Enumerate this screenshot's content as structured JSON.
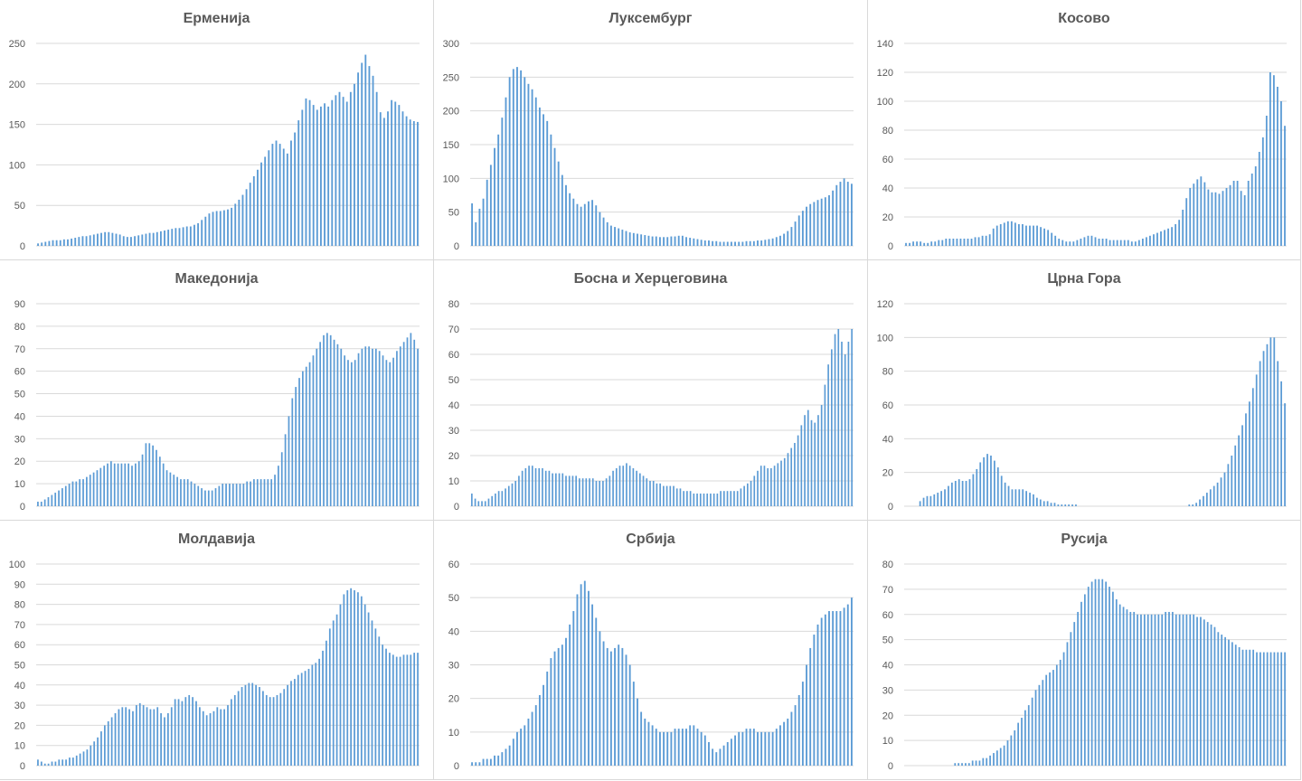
{
  "colors": {
    "bar": "#5b9bd5",
    "grid": "#d9d9d9",
    "text": "#595959",
    "border": "#d9d9d9"
  },
  "chart_data": [
    {
      "type": "bar",
      "title": "Ерменија",
      "ylim": [
        0,
        250
      ],
      "yticks": [
        "0",
        "50",
        "100",
        "150",
        "200",
        "250"
      ],
      "grid": true,
      "values": [
        3,
        4,
        5,
        6,
        7,
        7,
        7,
        8,
        8,
        9,
        10,
        11,
        12,
        12,
        13,
        14,
        15,
        16,
        17,
        17,
        16,
        15,
        14,
        12,
        11,
        11,
        12,
        13,
        14,
        15,
        16,
        16,
        17,
        18,
        19,
        20,
        21,
        22,
        22,
        23,
        24,
        24,
        26,
        28,
        32,
        36,
        40,
        42,
        43,
        43,
        44,
        45,
        47,
        52,
        57,
        63,
        70,
        78,
        86,
        94,
        103,
        110,
        118,
        126,
        130,
        126,
        120,
        114,
        130,
        140,
        155,
        168,
        182,
        180,
        174,
        168,
        172,
        176,
        172,
        180,
        186,
        190,
        184,
        178,
        190,
        200,
        214,
        226,
        236,
        222,
        210,
        190,
        165,
        158,
        166,
        180,
        178,
        174,
        166,
        160,
        156,
        154,
        153
      ]
    },
    {
      "type": "bar",
      "title": "Луксембург",
      "ylim": [
        0,
        300
      ],
      "yticks": [
        "0",
        "50",
        "100",
        "150",
        "200",
        "250",
        "300"
      ],
      "grid": true,
      "values": [
        63,
        35,
        55,
        70,
        98,
        120,
        145,
        165,
        190,
        220,
        250,
        262,
        265,
        260,
        250,
        240,
        232,
        220,
        205,
        195,
        185,
        165,
        145,
        125,
        105,
        90,
        78,
        70,
        62,
        58,
        62,
        66,
        68,
        60,
        50,
        42,
        35,
        30,
        28,
        26,
        24,
        22,
        20,
        19,
        18,
        17,
        16,
        15,
        14,
        14,
        13,
        13,
        13,
        14,
        14,
        15,
        15,
        13,
        12,
        11,
        10,
        9,
        8,
        8,
        7,
        7,
        6,
        6,
        6,
        6,
        6,
        6,
        6,
        7,
        7,
        7,
        8,
        8,
        9,
        10,
        11,
        13,
        15,
        18,
        22,
        28,
        36,
        45,
        52,
        58,
        62,
        65,
        68,
        70,
        72,
        75,
        82,
        90,
        95,
        100,
        95,
        92
      ]
    },
    {
      "type": "bar",
      "title": "Косово",
      "ylim": [
        0,
        140
      ],
      "yticks": [
        "0",
        "20",
        "40",
        "60",
        "80",
        "100",
        "120",
        "140"
      ],
      "grid": true,
      "values": [
        2,
        2,
        3,
        3,
        3,
        2,
        2,
        3,
        3,
        4,
        4,
        5,
        5,
        5,
        5,
        5,
        5,
        5,
        5,
        6,
        6,
        7,
        7,
        8,
        12,
        14,
        15,
        16,
        17,
        17,
        16,
        15,
        15,
        14,
        14,
        14,
        14,
        13,
        12,
        11,
        9,
        7,
        5,
        4,
        3,
        3,
        3,
        4,
        5,
        6,
        7,
        7,
        6,
        5,
        5,
        5,
        4,
        4,
        4,
        4,
        4,
        4,
        3,
        3,
        4,
        5,
        6,
        7,
        8,
        9,
        10,
        11,
        12,
        13,
        15,
        18,
        25,
        33,
        40,
        43,
        46,
        48,
        44,
        39,
        37,
        37,
        36,
        38,
        40,
        42,
        45,
        45,
        38,
        35,
        45,
        50,
        55,
        65,
        75,
        90,
        120,
        118,
        110,
        100,
        83
      ]
    },
    {
      "type": "bar",
      "title": "Македонија",
      "ylim": [
        0,
        90
      ],
      "yticks": [
        "0",
        "10",
        "20",
        "30",
        "40",
        "50",
        "60",
        "70",
        "80",
        "90"
      ],
      "grid": true,
      "values": [
        2,
        2,
        3,
        4,
        5,
        6,
        7,
        8,
        9,
        10,
        11,
        11,
        12,
        12,
        13,
        14,
        15,
        16,
        17,
        18,
        19,
        20,
        19,
        19,
        19,
        19,
        19,
        18,
        19,
        20,
        23,
        28,
        28,
        27,
        25,
        22,
        19,
        16,
        15,
        14,
        13,
        12,
        12,
        12,
        11,
        10,
        9,
        8,
        7,
        7,
        7,
        8,
        9,
        10,
        10,
        10,
        10,
        10,
        10,
        10,
        11,
        11,
        12,
        12,
        12,
        12,
        12,
        12,
        14,
        18,
        24,
        32,
        40,
        48,
        53,
        57,
        60,
        62,
        64,
        67,
        70,
        73,
        76,
        77,
        76,
        74,
        72,
        70,
        67,
        65,
        64,
        65,
        68,
        70,
        71,
        71,
        70,
        70,
        69,
        67,
        65,
        64,
        66,
        69,
        71,
        73,
        75,
        77,
        74,
        70
      ]
    },
    {
      "type": "bar",
      "title": "Босна и Херцеговина",
      "ylim": [
        0,
        80
      ],
      "yticks": [
        "0",
        "10",
        "20",
        "30",
        "40",
        "50",
        "60",
        "70",
        "80"
      ],
      "grid": true,
      "values": [
        5,
        3,
        2,
        2,
        2,
        3,
        4,
        5,
        6,
        6,
        7,
        8,
        9,
        10,
        12,
        14,
        15,
        16,
        16,
        15,
        15,
        15,
        14,
        14,
        13,
        13,
        13,
        13,
        12,
        12,
        12,
        12,
        11,
        11,
        11,
        11,
        11,
        10,
        10,
        10,
        11,
        12,
        14,
        15,
        16,
        16,
        17,
        16,
        15,
        14,
        13,
        12,
        11,
        10,
        10,
        9,
        9,
        8,
        8,
        8,
        8,
        7,
        7,
        6,
        6,
        6,
        5,
        5,
        5,
        5,
        5,
        5,
        5,
        5,
        6,
        6,
        6,
        6,
        6,
        6,
        7,
        8,
        9,
        10,
        12,
        14,
        16,
        16,
        15,
        15,
        16,
        17,
        18,
        19,
        21,
        23,
        25,
        28,
        32,
        36,
        38,
        34,
        33,
        36,
        40,
        48,
        56,
        62,
        68,
        70,
        65,
        60,
        65,
        70
      ]
    },
    {
      "type": "bar",
      "title": "Црна Гора",
      "ylim": [
        0,
        120
      ],
      "yticks": [
        "0",
        "20",
        "40",
        "60",
        "80",
        "100",
        "120"
      ],
      "grid": true,
      "values": [
        0,
        0,
        0,
        0,
        3,
        5,
        6,
        6,
        7,
        8,
        9,
        10,
        12,
        14,
        15,
        16,
        15,
        15,
        16,
        19,
        22,
        26,
        29,
        31,
        30,
        27,
        23,
        18,
        14,
        12,
        10,
        10,
        10,
        10,
        9,
        8,
        7,
        5,
        4,
        3,
        3,
        2,
        2,
        1,
        1,
        1,
        1,
        1,
        1,
        0,
        0,
        0,
        0,
        0,
        0,
        0,
        0,
        0,
        0,
        0,
        0,
        0,
        0,
        0,
        0,
        0,
        0,
        0,
        0,
        0,
        0,
        0,
        0,
        0,
        0,
        0,
        0,
        0,
        0,
        0,
        1,
        1,
        2,
        4,
        6,
        8,
        10,
        12,
        14,
        17,
        20,
        25,
        30,
        36,
        42,
        48,
        55,
        62,
        70,
        78,
        86,
        92,
        96,
        100,
        100,
        86,
        74,
        61
      ]
    },
    {
      "type": "bar",
      "title": "Молдавија",
      "ylim": [
        0,
        100
      ],
      "yticks": [
        "0",
        "10",
        "20",
        "30",
        "40",
        "50",
        "60",
        "70",
        "80",
        "90",
        "100"
      ],
      "grid": true,
      "values": [
        3,
        2,
        1,
        1,
        2,
        2,
        3,
        3,
        3,
        4,
        4,
        5,
        6,
        7,
        8,
        10,
        12,
        14,
        17,
        20,
        22,
        24,
        26,
        28,
        29,
        29,
        28,
        27,
        30,
        31,
        30,
        29,
        28,
        28,
        29,
        26,
        24,
        26,
        29,
        33,
        33,
        32,
        34,
        35,
        34,
        32,
        29,
        27,
        25,
        26,
        27,
        29,
        28,
        28,
        30,
        33,
        35,
        37,
        39,
        40,
        41,
        41,
        40,
        39,
        37,
        35,
        34,
        34,
        35,
        36,
        38,
        40,
        42,
        43,
        45,
        46,
        47,
        48,
        50,
        51,
        53,
        57,
        62,
        68,
        72,
        75,
        80,
        85,
        87,
        88,
        87,
        86,
        84,
        80,
        76,
        72,
        68,
        64,
        60,
        58,
        56,
        55,
        54,
        54,
        55,
        55,
        55,
        56,
        56
      ]
    },
    {
      "type": "bar",
      "title": "Србија",
      "ylim": [
        0,
        60
      ],
      "yticks": [
        "0",
        "10",
        "20",
        "30",
        "40",
        "50",
        "60"
      ],
      "grid": true,
      "values": [
        1,
        1,
        1,
        2,
        2,
        2,
        3,
        3,
        4,
        5,
        6,
        8,
        10,
        11,
        12,
        14,
        16,
        18,
        21,
        24,
        28,
        32,
        34,
        35,
        36,
        38,
        42,
        46,
        51,
        54,
        55,
        52,
        48,
        44,
        40,
        37,
        35,
        34,
        35,
        36,
        35,
        33,
        30,
        25,
        20,
        16,
        14,
        13,
        12,
        11,
        10,
        10,
        10,
        10,
        11,
        11,
        11,
        11,
        12,
        12,
        11,
        10,
        9,
        7,
        5,
        4,
        5,
        6,
        7,
        8,
        9,
        10,
        10,
        11,
        11,
        11,
        10,
        10,
        10,
        10,
        10,
        11,
        12,
        13,
        14,
        16,
        18,
        21,
        25,
        30,
        35,
        39,
        42,
        44,
        45,
        46,
        46,
        46,
        46,
        47,
        48,
        50
      ]
    },
    {
      "type": "bar",
      "title": "Русија",
      "ylim": [
        0,
        80
      ],
      "yticks": [
        "0",
        "10",
        "20",
        "30",
        "40",
        "50",
        "60",
        "70",
        "80"
      ],
      "grid": true,
      "values": [
        0,
        0,
        0,
        0,
        0,
        0,
        0,
        0,
        0,
        0,
        0,
        0,
        0,
        0,
        1,
        1,
        1,
        1,
        1,
        2,
        2,
        2,
        3,
        3,
        4,
        5,
        6,
        7,
        8,
        10,
        12,
        14,
        17,
        19,
        22,
        24,
        27,
        30,
        32,
        34,
        36,
        37,
        38,
        40,
        42,
        45,
        49,
        53,
        57,
        61,
        65,
        68,
        71,
        73,
        74,
        74,
        74,
        73,
        71,
        69,
        66,
        64,
        63,
        62,
        61,
        61,
        60,
        60,
        60,
        60,
        60,
        60,
        60,
        60,
        61,
        61,
        61,
        60,
        60,
        60,
        60,
        60,
        60,
        59,
        59,
        58,
        57,
        56,
        55,
        53,
        52,
        51,
        50,
        49,
        48,
        47,
        46,
        46,
        46,
        46,
        45,
        45,
        45,
        45,
        45,
        45,
        45,
        45,
        45
      ]
    }
  ]
}
